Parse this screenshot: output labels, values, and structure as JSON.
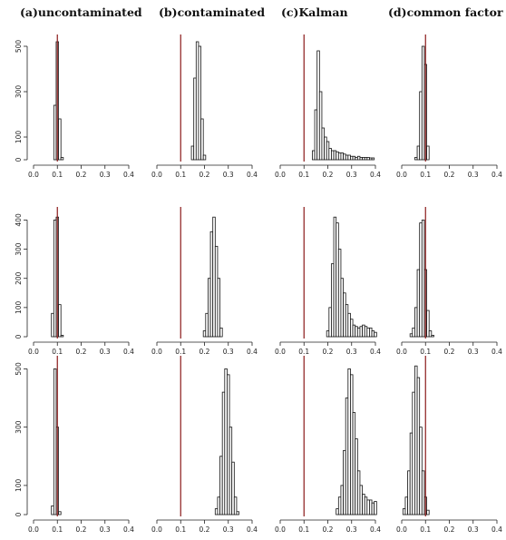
{
  "columns": [
    {
      "title": "(a)uncontaminated"
    },
    {
      "title": "(b)contaminated"
    },
    {
      "title": "(c)Kalman"
    },
    {
      "title": "(d)common factor"
    }
  ],
  "colors": {
    "bar_fill": "#ffffff",
    "bar_stroke": "#111111",
    "reference_line": "#8b1a1a"
  },
  "chart_data": [
    {
      "type": "bar",
      "row": 1,
      "col": 1,
      "title": "(a)uncontaminated",
      "xlim": [
        0,
        0.4
      ],
      "ylim": [
        0,
        520
      ],
      "xticks": [
        "0.0",
        "0.1",
        "0.2",
        "0.3",
        "0.4"
      ],
      "yticks": [
        "0",
        "100",
        "300",
        "500"
      ],
      "reference_x": 0.1,
      "bin_width": 0.01,
      "bins": [
        {
          "x": 0.09,
          "count": 240
        },
        {
          "x": 0.1,
          "count": 520
        },
        {
          "x": 0.11,
          "count": 180
        },
        {
          "x": 0.12,
          "count": 10
        }
      ]
    },
    {
      "type": "bar",
      "row": 1,
      "col": 2,
      "title": "(b)contaminated",
      "xlim": [
        0,
        0.4
      ],
      "ylim": [
        0,
        520
      ],
      "xticks": [
        "0.0",
        "0.1",
        "0.2",
        "0.3",
        "0.4"
      ],
      "reference_x": 0.1,
      "bin_width": 0.01,
      "bins": [
        {
          "x": 0.15,
          "count": 60
        },
        {
          "x": 0.16,
          "count": 360
        },
        {
          "x": 0.17,
          "count": 520
        },
        {
          "x": 0.18,
          "count": 500
        },
        {
          "x": 0.19,
          "count": 180
        },
        {
          "x": 0.2,
          "count": 20
        }
      ]
    },
    {
      "type": "bar",
      "row": 1,
      "col": 3,
      "title": "(c)Kalman",
      "xlim": [
        0,
        0.4
      ],
      "ylim": [
        0,
        520
      ],
      "xticks": [
        "0.0",
        "0.1",
        "0.2",
        "0.3",
        "0.4"
      ],
      "reference_x": 0.1,
      "bin_width": 0.01,
      "bins": [
        {
          "x": 0.14,
          "count": 40
        },
        {
          "x": 0.15,
          "count": 220
        },
        {
          "x": 0.16,
          "count": 480
        },
        {
          "x": 0.17,
          "count": 300
        },
        {
          "x": 0.18,
          "count": 140
        },
        {
          "x": 0.19,
          "count": 100
        },
        {
          "x": 0.2,
          "count": 80
        },
        {
          "x": 0.21,
          "count": 50
        },
        {
          "x": 0.22,
          "count": 40
        },
        {
          "x": 0.23,
          "count": 40
        },
        {
          "x": 0.24,
          "count": 35
        },
        {
          "x": 0.25,
          "count": 30
        },
        {
          "x": 0.26,
          "count": 30
        },
        {
          "x": 0.27,
          "count": 25
        },
        {
          "x": 0.28,
          "count": 20
        },
        {
          "x": 0.29,
          "count": 20
        },
        {
          "x": 0.3,
          "count": 15
        },
        {
          "x": 0.31,
          "count": 15
        },
        {
          "x": 0.32,
          "count": 10
        },
        {
          "x": 0.33,
          "count": 15
        },
        {
          "x": 0.34,
          "count": 10
        },
        {
          "x": 0.35,
          "count": 10
        },
        {
          "x": 0.36,
          "count": 10
        },
        {
          "x": 0.37,
          "count": 10
        },
        {
          "x": 0.38,
          "count": 8
        },
        {
          "x": 0.39,
          "count": 8
        }
      ]
    },
    {
      "type": "bar",
      "row": 1,
      "col": 4,
      "title": "(d)common factor",
      "xlim": [
        0,
        0.4
      ],
      "ylim": [
        0,
        520
      ],
      "xticks": [
        "0.0",
        "0.1",
        "0.2",
        "0.3",
        "0.4"
      ],
      "reference_x": 0.1,
      "bin_width": 0.01,
      "bins": [
        {
          "x": 0.06,
          "count": 10
        },
        {
          "x": 0.07,
          "count": 60
        },
        {
          "x": 0.08,
          "count": 300
        },
        {
          "x": 0.09,
          "count": 500
        },
        {
          "x": 0.1,
          "count": 420
        },
        {
          "x": 0.11,
          "count": 60
        }
      ]
    },
    {
      "type": "bar",
      "row": 2,
      "col": 1,
      "xlim": [
        0,
        0.4
      ],
      "ylim": [
        0,
        420
      ],
      "xticks": [
        "0.0",
        "0.1",
        "0.2",
        "0.3",
        "0.4"
      ],
      "yticks": [
        "0",
        "100",
        "200",
        "300",
        "400"
      ],
      "reference_x": 0.1,
      "bin_width": 0.01,
      "bins": [
        {
          "x": 0.08,
          "count": 80
        },
        {
          "x": 0.09,
          "count": 400
        },
        {
          "x": 0.1,
          "count": 410
        },
        {
          "x": 0.11,
          "count": 110
        },
        {
          "x": 0.12,
          "count": 5
        }
      ]
    },
    {
      "type": "bar",
      "row": 2,
      "col": 2,
      "xlim": [
        0,
        0.4
      ],
      "ylim": [
        0,
        420
      ],
      "xticks": [
        "0.0",
        "0.1",
        "0.2",
        "0.3",
        "0.4"
      ],
      "reference_x": 0.1,
      "bin_width": 0.01,
      "bins": [
        {
          "x": 0.2,
          "count": 20
        },
        {
          "x": 0.21,
          "count": 80
        },
        {
          "x": 0.22,
          "count": 200
        },
        {
          "x": 0.23,
          "count": 360
        },
        {
          "x": 0.24,
          "count": 410
        },
        {
          "x": 0.25,
          "count": 310
        },
        {
          "x": 0.26,
          "count": 200
        },
        {
          "x": 0.27,
          "count": 30
        }
      ]
    },
    {
      "type": "bar",
      "row": 2,
      "col": 3,
      "xlim": [
        0,
        0.4
      ],
      "ylim": [
        0,
        420
      ],
      "xticks": [
        "0.0",
        "0.1",
        "0.2",
        "0.3",
        "0.4"
      ],
      "reference_x": 0.1,
      "bin_width": 0.01,
      "bins": [
        {
          "x": 0.2,
          "count": 20
        },
        {
          "x": 0.21,
          "count": 100
        },
        {
          "x": 0.22,
          "count": 250
        },
        {
          "x": 0.23,
          "count": 410
        },
        {
          "x": 0.24,
          "count": 390
        },
        {
          "x": 0.25,
          "count": 300
        },
        {
          "x": 0.26,
          "count": 200
        },
        {
          "x": 0.27,
          "count": 150
        },
        {
          "x": 0.28,
          "count": 110
        },
        {
          "x": 0.29,
          "count": 80
        },
        {
          "x": 0.3,
          "count": 60
        },
        {
          "x": 0.31,
          "count": 40
        },
        {
          "x": 0.32,
          "count": 35
        },
        {
          "x": 0.33,
          "count": 30
        },
        {
          "x": 0.34,
          "count": 35
        },
        {
          "x": 0.35,
          "count": 40
        },
        {
          "x": 0.36,
          "count": 35
        },
        {
          "x": 0.37,
          "count": 30
        },
        {
          "x": 0.38,
          "count": 30
        },
        {
          "x": 0.39,
          "count": 20
        },
        {
          "x": 0.4,
          "count": 15
        }
      ]
    },
    {
      "type": "bar",
      "row": 2,
      "col": 4,
      "xlim": [
        0,
        0.4
      ],
      "ylim": [
        0,
        420
      ],
      "xticks": [
        "0.0",
        "0.1",
        "0.2",
        "0.3",
        "0.4"
      ],
      "reference_x": 0.1,
      "bin_width": 0.01,
      "bins": [
        {
          "x": 0.04,
          "count": 10
        },
        {
          "x": 0.05,
          "count": 30
        },
        {
          "x": 0.06,
          "count": 100
        },
        {
          "x": 0.07,
          "count": 230
        },
        {
          "x": 0.08,
          "count": 390
        },
        {
          "x": 0.09,
          "count": 400
        },
        {
          "x": 0.1,
          "count": 230
        },
        {
          "x": 0.11,
          "count": 90
        },
        {
          "x": 0.12,
          "count": 20
        },
        {
          "x": 0.13,
          "count": 5
        }
      ]
    },
    {
      "type": "bar",
      "row": 3,
      "col": 1,
      "xlim": [
        0,
        0.4
      ],
      "ylim": [
        0,
        520
      ],
      "xticks": [
        "0.0",
        "0.1",
        "0.2",
        "0.3",
        "0.4"
      ],
      "yticks": [
        "0",
        "100",
        "300",
        "500"
      ],
      "reference_x": 0.1,
      "bin_width": 0.01,
      "bins": [
        {
          "x": 0.08,
          "count": 30
        },
        {
          "x": 0.09,
          "count": 500
        },
        {
          "x": 0.1,
          "count": 300
        },
        {
          "x": 0.11,
          "count": 10
        }
      ]
    },
    {
      "type": "bar",
      "row": 3,
      "col": 2,
      "xlim": [
        0,
        0.4
      ],
      "ylim": [
        0,
        520
      ],
      "xticks": [
        "0.0",
        "0.1",
        "0.2",
        "0.3",
        "0.4"
      ],
      "reference_x": 0.1,
      "bin_width": 0.01,
      "bins": [
        {
          "x": 0.25,
          "count": 20
        },
        {
          "x": 0.26,
          "count": 60
        },
        {
          "x": 0.27,
          "count": 200
        },
        {
          "x": 0.28,
          "count": 420
        },
        {
          "x": 0.29,
          "count": 500
        },
        {
          "x": 0.3,
          "count": 480
        },
        {
          "x": 0.31,
          "count": 300
        },
        {
          "x": 0.32,
          "count": 180
        },
        {
          "x": 0.33,
          "count": 60
        },
        {
          "x": 0.34,
          "count": 10
        }
      ]
    },
    {
      "type": "bar",
      "row": 3,
      "col": 3,
      "xlim": [
        0,
        0.4
      ],
      "ylim": [
        0,
        520
      ],
      "xticks": [
        "0.0",
        "0.1",
        "0.2",
        "0.3",
        "0.4"
      ],
      "reference_x": 0.1,
      "bin_width": 0.01,
      "bins": [
        {
          "x": 0.24,
          "count": 20
        },
        {
          "x": 0.25,
          "count": 60
        },
        {
          "x": 0.26,
          "count": 100
        },
        {
          "x": 0.27,
          "count": 220
        },
        {
          "x": 0.28,
          "count": 400
        },
        {
          "x": 0.29,
          "count": 500
        },
        {
          "x": 0.3,
          "count": 480
        },
        {
          "x": 0.31,
          "count": 350
        },
        {
          "x": 0.32,
          "count": 260
        },
        {
          "x": 0.33,
          "count": 150
        },
        {
          "x": 0.34,
          "count": 100
        },
        {
          "x": 0.35,
          "count": 70
        },
        {
          "x": 0.36,
          "count": 60
        },
        {
          "x": 0.37,
          "count": 50
        },
        {
          "x": 0.38,
          "count": 50
        },
        {
          "x": 0.39,
          "count": 40
        },
        {
          "x": 0.4,
          "count": 45
        }
      ]
    },
    {
      "type": "bar",
      "row": 3,
      "col": 4,
      "xlim": [
        0,
        0.4
      ],
      "ylim": [
        0,
        520
      ],
      "xticks": [
        "0.0",
        "0.1",
        "0.2",
        "0.3",
        "0.4"
      ],
      "reference_x": 0.1,
      "bin_width": 0.01,
      "bins": [
        {
          "x": 0.01,
          "count": 20
        },
        {
          "x": 0.02,
          "count": 60
        },
        {
          "x": 0.03,
          "count": 150
        },
        {
          "x": 0.04,
          "count": 280
        },
        {
          "x": 0.05,
          "count": 420
        },
        {
          "x": 0.06,
          "count": 510
        },
        {
          "x": 0.07,
          "count": 470
        },
        {
          "x": 0.08,
          "count": 300
        },
        {
          "x": 0.09,
          "count": 150
        },
        {
          "x": 0.1,
          "count": 60
        },
        {
          "x": 0.11,
          "count": 15
        }
      ]
    }
  ]
}
